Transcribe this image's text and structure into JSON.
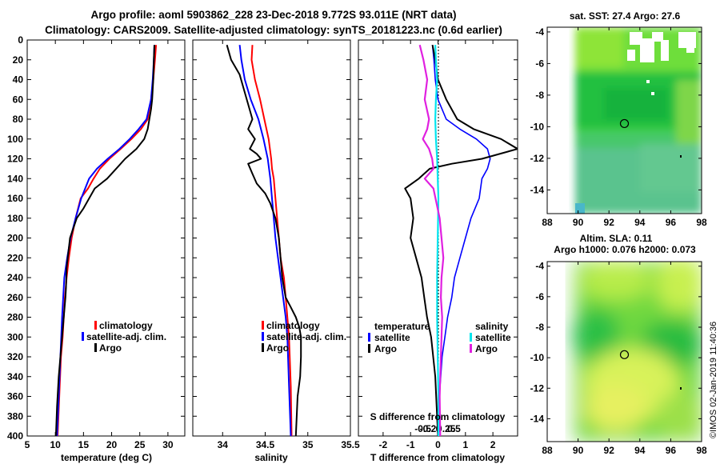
{
  "header": {
    "line1": "Argo profile: aoml 5903862_228 23-Dec-2018 9.772S 93.011E (NRT data)",
    "line2": "Climatology: CARS2009. Satellite-adjusted climatology: synTS_20181223.nc (0.6d earlier)"
  },
  "colors": {
    "climatology": "#ff0000",
    "satellite": "#0000ff",
    "argo": "#000000",
    "sal_satellite": "#00e5ee",
    "sal_argo": "#e020e0"
  },
  "chart_data": [
    {
      "type": "line",
      "id": "temperature",
      "xlabel": "temperature (deg C)",
      "xlim": [
        5,
        33
      ],
      "xticks": [
        5,
        10,
        15,
        20,
        25,
        30
      ],
      "ylim": [
        400,
        0
      ],
      "yticks": [
        0,
        20,
        40,
        60,
        80,
        100,
        120,
        140,
        160,
        180,
        200,
        220,
        240,
        260,
        280,
        300,
        320,
        340,
        360,
        380,
        400
      ],
      "legend": [
        "climatology",
        "satellite-adj. clim.",
        "Argo"
      ],
      "series": [
        {
          "name": "climatology",
          "color": "#ff0000",
          "x": [
            27.9,
            27.7,
            27.4,
            27.0,
            26.4,
            25.2,
            23.5,
            21.6,
            19.6,
            17.9,
            16.8,
            15.8,
            14.5,
            13.6,
            12.9,
            12.4,
            12.0,
            11.7,
            11.3,
            11.0,
            10.7,
            10.4
          ],
          "y": [
            5,
            20,
            40,
            60,
            80,
            90,
            100,
            110,
            120,
            130,
            140,
            150,
            160,
            180,
            200,
            220,
            240,
            260,
            300,
            320,
            360,
            400
          ]
        },
        {
          "name": "satellite-adj. clim.",
          "color": "#0000ff",
          "x": [
            27.6,
            27.5,
            27.3,
            27.0,
            26.2,
            24.8,
            23.2,
            21.4,
            19.3,
            17.4,
            16.0,
            14.6,
            13.6,
            12.7,
            12.1,
            11.6,
            11.2,
            10.9,
            10.6,
            10.3
          ],
          "y": [
            5,
            20,
            40,
            60,
            80,
            90,
            100,
            110,
            120,
            130,
            140,
            160,
            180,
            200,
            220,
            240,
            280,
            320,
            360,
            400
          ]
        },
        {
          "name": "Argo",
          "color": "#000000",
          "x": [
            27.6,
            27.5,
            27.4,
            27.2,
            27.0,
            26.7,
            26.4,
            25.8,
            24.4,
            22.4,
            20.8,
            19.2,
            17.0,
            16.0,
            15.0,
            13.8,
            12.6,
            12.0,
            11.9,
            11.8,
            11.5,
            11.2,
            10.9,
            10.6,
            10.3,
            10.1
          ],
          "y": [
            5,
            20,
            40,
            60,
            70,
            80,
            90,
            100,
            110,
            120,
            130,
            140,
            150,
            160,
            170,
            180,
            200,
            230,
            250,
            260,
            280,
            300,
            320,
            340,
            370,
            400
          ]
        }
      ]
    },
    {
      "type": "line",
      "id": "salinity",
      "xlabel": "salinity",
      "xlim": [
        33.65,
        35.5
      ],
      "xticks": [
        34,
        34.5,
        35,
        35.5
      ],
      "xticklabels": [
        "34",
        "34.5",
        "35",
        "35.5"
      ],
      "ylim": [
        400,
        0
      ],
      "legend": [
        "climatology",
        "satellite-adj. clim.",
        "Argo"
      ],
      "series": [
        {
          "name": "climatology",
          "color": "#ff0000",
          "x": [
            34.35,
            34.34,
            34.38,
            34.44,
            34.49,
            34.54,
            34.57,
            34.58,
            34.6,
            34.62,
            34.64,
            34.66,
            34.68,
            34.72,
            34.74,
            34.76,
            34.78,
            34.8,
            34.81
          ],
          "y": [
            5,
            20,
            40,
            60,
            80,
            100,
            120,
            130,
            140,
            160,
            180,
            200,
            220,
            240,
            260,
            280,
            300,
            350,
            400
          ]
        },
        {
          "name": "satellite-adj. clim.",
          "color": "#0000ff",
          "x": [
            34.2,
            34.22,
            34.26,
            34.33,
            34.42,
            34.48,
            34.53,
            34.56,
            34.58,
            34.6,
            34.62,
            34.65,
            34.68,
            34.71,
            34.74,
            34.76,
            34.78,
            34.8
          ],
          "y": [
            5,
            20,
            40,
            60,
            80,
            100,
            120,
            140,
            160,
            180,
            200,
            220,
            240,
            260,
            280,
            300,
            350,
            400
          ]
        },
        {
          "name": "Argo",
          "color": "#000000",
          "x": [
            34.05,
            34.1,
            34.2,
            34.25,
            34.3,
            34.35,
            34.3,
            34.38,
            34.32,
            34.4,
            34.45,
            34.3,
            34.35,
            34.4,
            34.5,
            34.56,
            34.62,
            34.66,
            34.68,
            34.7,
            34.74,
            34.8,
            34.86,
            34.9,
            34.92,
            34.92,
            34.91,
            34.88,
            34.86
          ],
          "y": [
            5,
            20,
            35,
            50,
            65,
            80,
            90,
            100,
            110,
            115,
            120,
            125,
            135,
            145,
            155,
            165,
            180,
            200,
            220,
            240,
            260,
            270,
            280,
            290,
            300,
            320,
            340,
            360,
            400
          ]
        }
      ]
    },
    {
      "type": "line",
      "id": "difference",
      "xlabel": "T difference from climatology",
      "xlim": [
        -2.9,
        2.9
      ],
      "xticks": [
        -2,
        -1,
        0,
        1,
        2
      ],
      "top_label": "S difference from climatology",
      "top_ticks": [
        -0.5,
        -0.25,
        0,
        0.25,
        0.5
      ],
      "top_ticklabels": [
        "-0.5",
        "-0.25",
        "0",
        "0.25",
        "0.5"
      ],
      "ylim": [
        400,
        0
      ],
      "legend_temperature": {
        "title": "temperature",
        "items": [
          "satellite",
          "Argo"
        ]
      },
      "legend_salinity": {
        "title": "salinity",
        "items": [
          "satellite",
          "Argo"
        ]
      },
      "series": [
        {
          "name": "temperature satellite",
          "color": "#0000ff",
          "x": [
            -0.2,
            -0.15,
            -0.1,
            0.0,
            0.3,
            0.8,
            1.4,
            1.8,
            1.9,
            1.8,
            1.6,
            1.5,
            1.2,
            1.0,
            0.8,
            0.6,
            0.5,
            0.35,
            0.25,
            0.15,
            0.05,
            0.0
          ],
          "y": [
            5,
            20,
            40,
            60,
            80,
            90,
            100,
            110,
            120,
            130,
            140,
            160,
            180,
            200,
            220,
            240,
            260,
            280,
            300,
            320,
            360,
            400
          ]
        },
        {
          "name": "temperature Argo",
          "color": "#000000",
          "x": [
            -0.2,
            -0.1,
            0.0,
            0.3,
            0.7,
            1.3,
            2.3,
            2.9,
            1.6,
            0.5,
            -0.3,
            -0.7,
            -1.2,
            -1.0,
            -0.9,
            -1.0,
            -0.8,
            -0.6,
            -0.5,
            -0.4,
            -0.25,
            -0.1,
            0.0
          ],
          "y": [
            5,
            20,
            40,
            60,
            80,
            90,
            100,
            110,
            120,
            125,
            130,
            140,
            150,
            160,
            180,
            200,
            220,
            240,
            260,
            280,
            300,
            340,
            400
          ]
        },
        {
          "name": "salinity satellite",
          "color": "#00e5ee",
          "x": [
            -0.05,
            -0.04,
            -0.02,
            -0.04,
            -0.05,
            -0.04,
            -0.02,
            -0.01,
            0.0,
            -0.01,
            -0.02,
            -0.02,
            -0.01,
            0.0,
            0.0
          ],
          "y": [
            5,
            20,
            40,
            60,
            80,
            100,
            120,
            140,
            160,
            200,
            240,
            280,
            320,
            360,
            400
          ]
        },
        {
          "name": "salinity Argo",
          "color": "#e020e0",
          "x": [
            -0.3,
            -0.24,
            -0.18,
            -0.22,
            -0.15,
            -0.18,
            -0.25,
            -0.15,
            -0.1,
            -0.08,
            -0.22,
            -0.08,
            0.02,
            0.05,
            0.08,
            0.05,
            0.04,
            0.06,
            0.05,
            0.04,
            0.03,
            0.02,
            0.03
          ],
          "y": [
            5,
            20,
            40,
            60,
            80,
            90,
            100,
            110,
            120,
            130,
            140,
            150,
            180,
            200,
            220,
            240,
            260,
            280,
            300,
            320,
            340,
            360,
            400
          ]
        }
      ]
    },
    {
      "type": "heatmap",
      "id": "sst_map",
      "title": "sat. SST: 27.4 Argo: 27.6",
      "xlim": [
        88,
        98
      ],
      "xticks": [
        88,
        90,
        92,
        94,
        96,
        98
      ],
      "ylim": [
        -15.5,
        -3.7
      ],
      "yticks": [
        -4,
        -6,
        -8,
        -10,
        -12,
        -14
      ],
      "data_extent_x": [
        90,
        98
      ],
      "profile_marker": {
        "lon": 93.0,
        "lat": -9.8
      }
    },
    {
      "type": "heatmap",
      "id": "sla_map",
      "title": "Altim. SLA: 0.11",
      "subtitle": "Argo h1000: 0.076 h2000: 0.073",
      "xlim": [
        88,
        98
      ],
      "xticks": [
        88,
        90,
        92,
        94,
        96,
        98
      ],
      "ylim": [
        -15.5,
        -3.7
      ],
      "yticks": [
        -4,
        -6,
        -8,
        -10,
        -12,
        -14
      ],
      "data_extent_x": [
        90,
        98
      ],
      "profile_marker": {
        "lon": 93.0,
        "lat": -9.8
      }
    }
  ],
  "credit": "©IMOS 02-Jan-2019 11:40:36"
}
